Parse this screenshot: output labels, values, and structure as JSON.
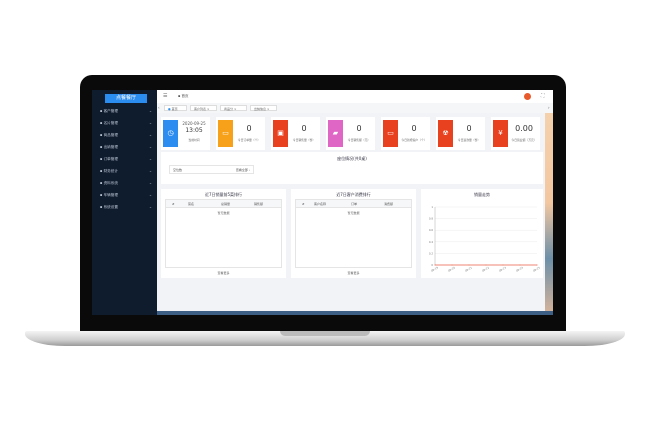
{
  "app": {
    "logo": "点餐餐厅"
  },
  "sidebar": {
    "items": [
      {
        "label": "客户管理"
      },
      {
        "label": "名片管理"
      },
      {
        "label": "商品管理"
      },
      {
        "label": "出纳管理"
      },
      {
        "label": "订单管理"
      },
      {
        "label": "财务统计"
      },
      {
        "label": "资料系统"
      },
      {
        "label": "车辆管理"
      },
      {
        "label": "系统设置"
      }
    ]
  },
  "header": {
    "breadcrumb": "首页"
  },
  "tabs": [
    {
      "label": "首页"
    },
    {
      "label": "客户列表"
    },
    {
      "label": "商品分"
    },
    {
      "label": "出纳信息"
    }
  ],
  "cards": {
    "datetime": {
      "date": "2020-09-25",
      "time": "13:05",
      "label": "当前时间"
    },
    "stats": [
      {
        "value": "0",
        "label": "今日订单量（个）",
        "color": "#f7a11a"
      },
      {
        "value": "0",
        "label": "今日销售量（份）",
        "color": "#e8411f"
      },
      {
        "value": "0",
        "label": "今日销售额（元）",
        "color": "#e066c5"
      },
      {
        "value": "0",
        "label": "今日新增客户（个）",
        "color": "#e8411f"
      },
      {
        "value": "0",
        "label": "今日退款量（份）",
        "color": "#e8411f"
      },
      {
        "value": "0.00",
        "label": "今日营业额（万元）",
        "color": "#e8411f"
      }
    ]
  },
  "overview": {
    "title": "座位情况(共0桌)",
    "item_label": "空位数",
    "item_action": "查看全部 ›"
  },
  "table1": {
    "title": "近7日销量前5菜排行",
    "columns": [
      "#",
      "菜名",
      "总销量",
      "销售额"
    ],
    "empty": "暂无数据",
    "more": "查看更多"
  },
  "table2": {
    "title": "近7日客户消费排行",
    "columns": [
      "#",
      "客户名称",
      "订单",
      "消费额"
    ],
    "empty": "暂无数据",
    "more": "查看更多"
  },
  "chart_data": {
    "type": "line",
    "title": "销量走势",
    "x": [
      "09-19",
      "09-20",
      "09-21",
      "09-22",
      "09-23",
      "09-24",
      "09-25"
    ],
    "series": [
      {
        "values": [
          0,
          0,
          0,
          0,
          0,
          0,
          0
        ]
      }
    ],
    "yticks": [
      "0",
      "0.2",
      "0.4",
      "0.6",
      "0.8",
      "1"
    ],
    "ylim": [
      0,
      1
    ],
    "grid": true,
    "color": "#e8604a"
  }
}
